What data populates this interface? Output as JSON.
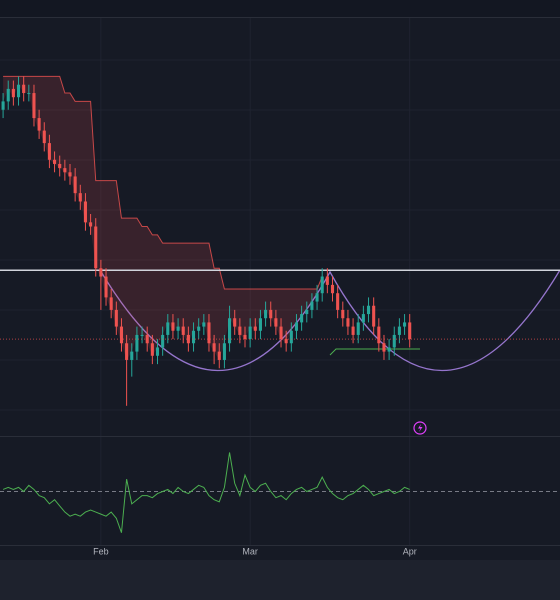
{
  "chart_data": {
    "type": "candlestick",
    "xlim": [
      -0.6,
      108.2
    ],
    "xticks": [
      {
        "value": 19,
        "label": "Feb"
      },
      {
        "value": 48,
        "label": "Mar"
      },
      {
        "value": 79,
        "label": "Apr"
      }
    ],
    "ylim": [
      0,
      100
    ],
    "up_color": "#26a69a",
    "down_color": "#ef5350",
    "open": [
      78,
      80,
      83,
      81,
      84,
      82,
      82,
      76,
      73,
      70,
      66,
      65,
      64,
      63,
      62,
      58,
      56,
      51,
      50,
      40,
      38,
      33,
      30,
      26,
      22,
      18,
      20,
      24,
      24,
      22,
      19,
      21,
      24,
      27,
      25,
      26,
      24,
      22,
      25,
      26,
      27,
      22,
      20,
      18,
      22,
      28,
      26,
      24,
      23,
      26,
      25,
      28,
      30,
      28,
      26,
      23,
      22,
      25,
      27,
      29,
      30,
      32,
      34,
      38,
      36,
      34,
      30,
      28,
      26,
      24,
      27,
      29,
      31,
      26,
      22,
      20,
      21,
      24,
      26,
      27
    ],
    "high": [
      82,
      85,
      85,
      86,
      86,
      84,
      84,
      78,
      75,
      72,
      68,
      67,
      66,
      65,
      64,
      60,
      58,
      53,
      52,
      42,
      40,
      35,
      32,
      28,
      24,
      22,
      26,
      26,
      26,
      24,
      23,
      26,
      29,
      29,
      28,
      28,
      26,
      27,
      28,
      29,
      29,
      24,
      22,
      24,
      31,
      30,
      28,
      26,
      28,
      28,
      30,
      32,
      32,
      30,
      28,
      25,
      27,
      29,
      31,
      32,
      34,
      36,
      40,
      40,
      38,
      36,
      32,
      30,
      28,
      29,
      31,
      33,
      33,
      28,
      24,
      23,
      26,
      28,
      29,
      29
    ],
    "low": [
      76,
      78,
      79,
      79,
      80,
      80,
      74,
      71,
      68,
      64,
      63,
      62,
      61,
      60,
      56,
      54,
      49,
      48,
      38,
      30,
      31,
      28,
      24,
      20,
      7,
      14,
      18,
      22,
      20,
      17,
      17,
      19,
      22,
      23,
      23,
      22,
      20,
      20,
      23,
      24,
      20,
      17,
      16,
      16,
      20,
      24,
      22,
      21,
      21,
      23,
      23,
      26,
      26,
      24,
      21,
      20,
      20,
      23,
      25,
      27,
      28,
      30,
      32,
      34,
      32,
      28,
      26,
      24,
      22,
      22,
      25,
      27,
      24,
      20,
      18,
      18,
      19,
      22,
      24,
      21
    ],
    "close": [
      80,
      83,
      81,
      84,
      82,
      82,
      76,
      73,
      70,
      66,
      65,
      64,
      63,
      62,
      58,
      56,
      51,
      50,
      40,
      38,
      33,
      30,
      26,
      22,
      18,
      20,
      24,
      24,
      22,
      19,
      21,
      24,
      27,
      25,
      26,
      24,
      22,
      25,
      26,
      27,
      22,
      20,
      18,
      22,
      28,
      26,
      24,
      23,
      26,
      25,
      28,
      30,
      28,
      26,
      23,
      22,
      25,
      27,
      29,
      30,
      32,
      34,
      38,
      36,
      34,
      30,
      28,
      26,
      24,
      27,
      29,
      31,
      26,
      22,
      20,
      21,
      24,
      26,
      27,
      23
    ],
    "band": [
      86,
      86,
      86,
      86,
      86,
      86,
      86,
      86,
      86,
      86,
      86,
      86,
      82,
      82,
      80,
      80,
      80,
      80,
      61,
      61,
      61,
      61,
      61,
      52,
      52,
      52,
      52,
      50,
      50,
      48,
      48,
      46,
      46,
      46,
      46,
      46,
      46,
      46,
      46,
      46,
      46,
      40,
      40,
      35,
      35,
      35,
      35,
      35,
      35,
      35,
      35,
      35,
      35,
      35,
      35,
      35,
      35,
      35,
      35,
      35,
      35,
      35,
      38
    ],
    "band_color": "#ef5350",
    "level_line": 39.5,
    "oscillator": {
      "ylim": [
        -1.3,
        1.3
      ],
      "zero": 0,
      "color": "#4caf50",
      "values": [
        0.05,
        0.1,
        0.05,
        0.1,
        0.0,
        0.15,
        0.05,
        -0.1,
        -0.15,
        -0.3,
        -0.2,
        -0.35,
        -0.5,
        -0.6,
        -0.55,
        -0.6,
        -0.5,
        -0.45,
        -0.5,
        -0.55,
        -0.6,
        -0.5,
        -0.65,
        -1.0,
        0.3,
        -0.3,
        -0.2,
        -0.1,
        -0.1,
        -0.15,
        -0.05,
        0.0,
        0.05,
        -0.05,
        0.1,
        0.0,
        -0.05,
        0.05,
        0.15,
        0.1,
        -0.1,
        -0.2,
        -0.25,
        0.1,
        0.95,
        0.2,
        -0.1,
        0.4,
        0.1,
        0.0,
        0.15,
        0.2,
        0.0,
        -0.15,
        -0.1,
        -0.2,
        -0.05,
        0.05,
        0.1,
        0.0,
        0.05,
        0.1,
        0.35,
        0.1,
        -0.05,
        -0.15,
        -0.2,
        -0.1,
        -0.05,
        0.05,
        0.15,
        0.05,
        -0.1,
        -0.05,
        0.0,
        0.05,
        -0.05,
        0.0,
        0.1,
        0.05
      ]
    }
  }
}
